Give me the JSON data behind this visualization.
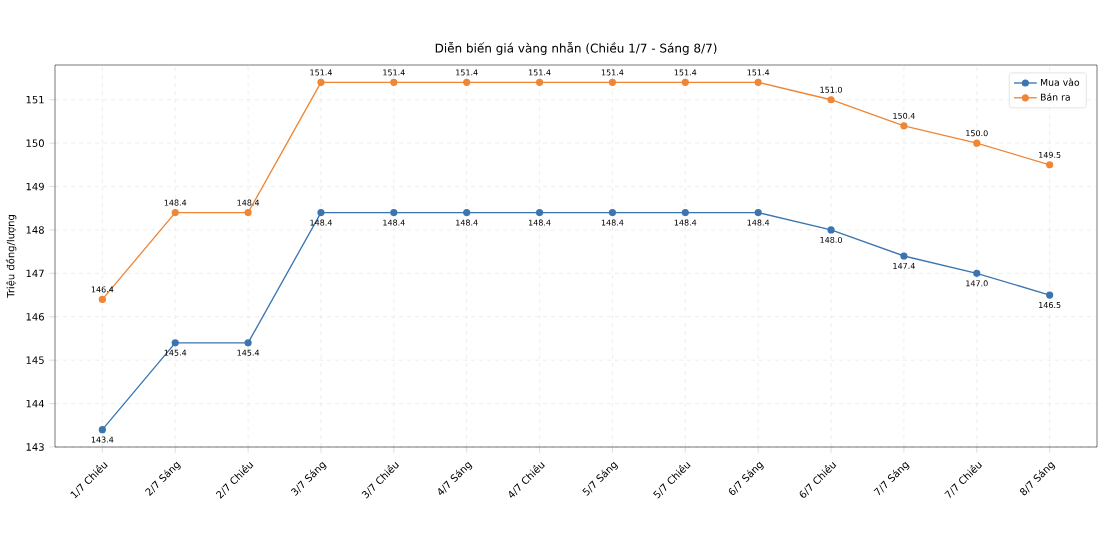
{
  "chart_data": {
    "type": "line",
    "title": "Diễn biến giá vàng nhẫn (Chiều 1/7 - Sáng 8/7)",
    "ylabel": "Triệu đồng/lượng",
    "categories": [
      "1/7 Chiều",
      "2/7 Sáng",
      "2/7 Chiều",
      "3/7 Sáng",
      "3/7 Chiều",
      "4/7 Sáng",
      "4/7 Chiều",
      "5/7 Sáng",
      "5/7 Chiều",
      "6/7 Sáng",
      "6/7 Chiều",
      "7/7 Sáng",
      "7/7 Chiều",
      "8/7 Sáng"
    ],
    "series": [
      {
        "name": "Mua vào",
        "color": "#3b75af",
        "values": [
          143.4,
          145.4,
          145.4,
          148.4,
          148.4,
          148.4,
          148.4,
          148.4,
          148.4,
          148.4,
          148.0,
          147.4,
          147.0,
          146.5
        ],
        "value_labels": [
          "143.4",
          "145.4",
          "145.4",
          "148.4",
          "148.4",
          "148.4",
          "148.4",
          "148.4",
          "148.4",
          "148.4",
          "148.0",
          "147.4",
          "147.0",
          "146.5"
        ]
      },
      {
        "name": "Bán ra",
        "color": "#ef8636",
        "values": [
          146.4,
          148.4,
          148.4,
          151.4,
          151.4,
          151.4,
          151.4,
          151.4,
          151.4,
          151.4,
          151.0,
          150.4,
          150.0,
          149.5
        ],
        "value_labels": [
          "146.4",
          "148.4",
          "148.4",
          "151.4",
          "151.4",
          "151.4",
          "151.4",
          "151.4",
          "151.4",
          "151.4",
          "151.0",
          "150.4",
          "150.0",
          "149.5"
        ]
      }
    ],
    "ylim": [
      143,
      151.8
    ],
    "yticks": [
      143,
      144,
      145,
      146,
      147,
      148,
      149,
      150,
      151
    ],
    "grid": true,
    "legend": "top right",
    "marker": "circle",
    "line_style": "solid"
  }
}
